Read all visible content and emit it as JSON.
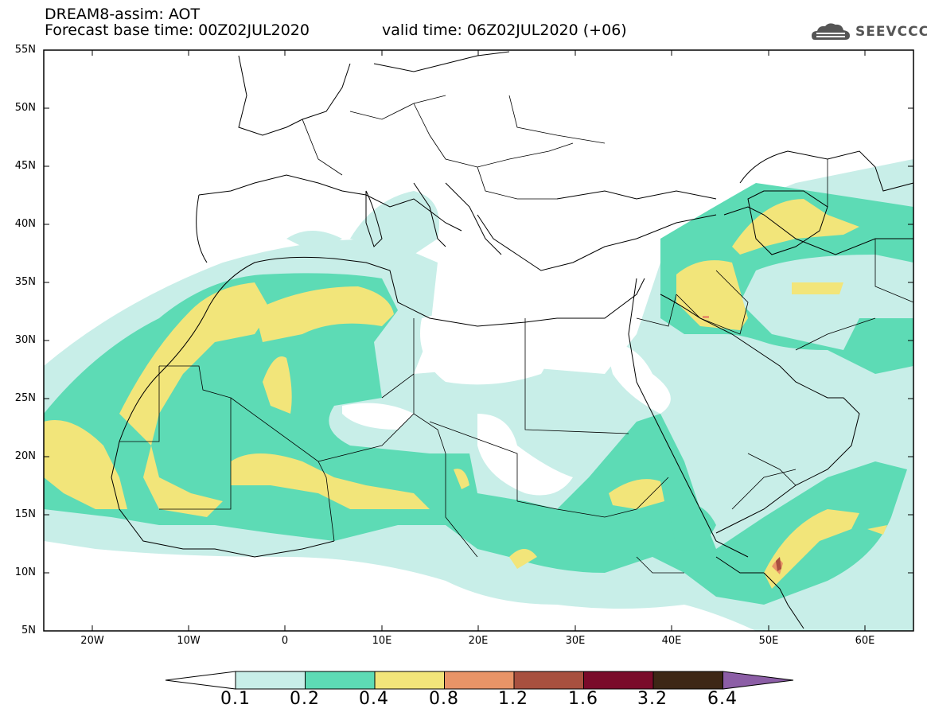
{
  "header": {
    "title_line1": "DREAM8-assim: AOT",
    "title_line2": "Forecast base time: 00Z02JUL2020",
    "title_line2b": "valid time: 06Z02JUL2020 (+06)"
  },
  "logo": {
    "text": "SEEVCCC",
    "icon": "cloud-logo-icon"
  },
  "axes": {
    "lat_labels": [
      "55N",
      "50N",
      "45N",
      "40N",
      "35N",
      "30N",
      "25N",
      "20N",
      "15N",
      "10N",
      "5N"
    ],
    "lon_labels": [
      "20W",
      "10W",
      "0",
      "10E",
      "20E",
      "30E",
      "40E",
      "50E",
      "60E"
    ]
  },
  "colorbar": {
    "labels": [
      "0.1",
      "0.2",
      "0.4",
      "0.8",
      "1.2",
      "1.6",
      "3.2",
      "6.4"
    ],
    "colors": [
      "#ffffff",
      "#c8eee8",
      "#5ddbb5",
      "#f2e57a",
      "#e89467",
      "#a8503f",
      "#7a0b2a",
      "#3d2716",
      "#8c5ea6"
    ]
  },
  "colors": {
    "lev1": "#c8eee8",
    "lev2": "#5ddbb5",
    "lev3": "#f2e57a",
    "lev4": "#e89467",
    "lev5": "#a8503f"
  }
}
